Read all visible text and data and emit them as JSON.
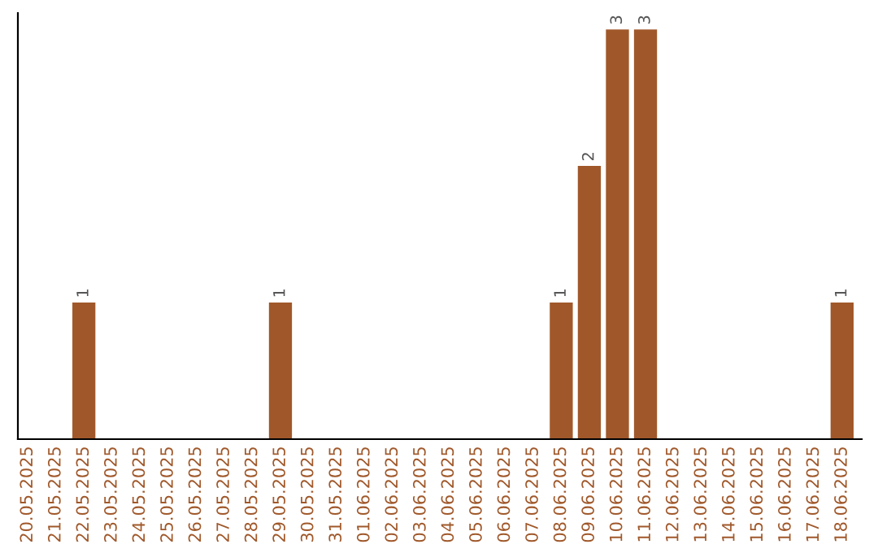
{
  "chart_data": {
    "type": "bar",
    "categories": [
      "20.05.2025",
      "21.05.2025",
      "22.05.2025",
      "23.05.2025",
      "24.05.2025",
      "25.05.2025",
      "26.05.2025",
      "27.05.2025",
      "28.05.2025",
      "29.05.2025",
      "30.05.2025",
      "31.05.2025",
      "01.06.2025",
      "02.06.2025",
      "03.06.2025",
      "04.06.2025",
      "05.06.2025",
      "06.06.2025",
      "07.06.2025",
      "08.06.2025",
      "09.06.2025",
      "10.06.2025",
      "11.06.2025",
      "12.06.2025",
      "13.06.2025",
      "14.06.2025",
      "15.06.2025",
      "16.06.2025",
      "17.06.2025",
      "18.06.2025"
    ],
    "values": [
      0,
      0,
      1,
      0,
      0,
      0,
      0,
      0,
      0,
      1,
      0,
      0,
      0,
      0,
      0,
      0,
      0,
      0,
      0,
      1,
      2,
      3,
      3,
      0,
      0,
      0,
      0,
      0,
      0,
      1
    ],
    "value_labels": [
      null,
      null,
      "1",
      null,
      null,
      null,
      null,
      null,
      null,
      "1",
      null,
      null,
      null,
      null,
      null,
      null,
      null,
      null,
      null,
      "1",
      "2",
      "3",
      "3",
      null,
      null,
      null,
      null,
      null,
      null,
      "1"
    ],
    "color": "#a0582a",
    "grid": false,
    "legend": false,
    "tick_labels": "x"
  }
}
